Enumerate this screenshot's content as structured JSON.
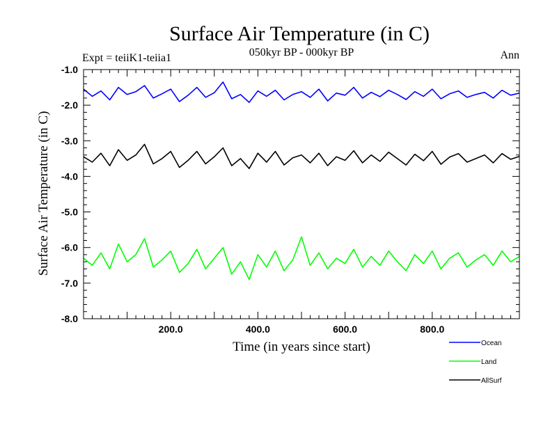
{
  "chart_data": {
    "type": "line",
    "title": "Surface Air Temperature (in C)",
    "subtitle": "050kyr BP - 000kyr BP",
    "left_label": "Expt = teiiK1-teiia1",
    "right_label": "Ann",
    "xlabel": "Time (in years since start)",
    "ylabel": "Surface Air Temperature (in C)",
    "xlim": [
      0,
      1000
    ],
    "ylim": [
      -8.0,
      -1.0
    ],
    "x_ticks": [
      {
        "value": 200,
        "label": "200.0"
      },
      {
        "value": 400,
        "label": "400.0"
      },
      {
        "value": 600,
        "label": "600.0"
      },
      {
        "value": 800,
        "label": "800.0"
      }
    ],
    "y_ticks": [
      {
        "value": -1,
        "label": "-1.0"
      },
      {
        "value": -2,
        "label": "-2.0"
      },
      {
        "value": -3,
        "label": "-3.0"
      },
      {
        "value": -4,
        "label": "-4.0"
      },
      {
        "value": -5,
        "label": "-5.0"
      },
      {
        "value": -6,
        "label": "-6.0"
      },
      {
        "value": -7,
        "label": "-7.0"
      },
      {
        "value": -8,
        "label": "-8.0"
      }
    ],
    "grid": false,
    "legend_position": "bottom-right",
    "series": [
      {
        "name": "Ocean",
        "color": "#0000ff",
        "x_start": 0,
        "x_step": 20,
        "values": [
          -1.55,
          -1.75,
          -1.6,
          -1.85,
          -1.5,
          -1.7,
          -1.62,
          -1.45,
          -1.8,
          -1.68,
          -1.55,
          -1.9,
          -1.72,
          -1.5,
          -1.78,
          -1.65,
          -1.35,
          -1.82,
          -1.7,
          -1.92,
          -1.6,
          -1.75,
          -1.58,
          -1.85,
          -1.7,
          -1.62,
          -1.78,
          -1.55,
          -1.88,
          -1.66,
          -1.72,
          -1.5,
          -1.8,
          -1.64,
          -1.76,
          -1.58,
          -1.7,
          -1.84,
          -1.62,
          -1.75,
          -1.55,
          -1.82,
          -1.68,
          -1.6,
          -1.78,
          -1.7,
          -1.64,
          -1.8,
          -1.58,
          -1.72,
          -1.66
        ]
      },
      {
        "name": "Land",
        "color": "#00ff00",
        "x_start": 0,
        "x_step": 20,
        "values": [
          -6.3,
          -6.5,
          -6.15,
          -6.6,
          -5.9,
          -6.4,
          -6.2,
          -5.75,
          -6.55,
          -6.35,
          -6.1,
          -6.7,
          -6.45,
          -6.05,
          -6.6,
          -6.3,
          -6.0,
          -6.75,
          -6.4,
          -6.9,
          -6.2,
          -6.55,
          -6.1,
          -6.65,
          -6.35,
          -5.7,
          -6.5,
          -6.15,
          -6.6,
          -6.3,
          -6.45,
          -6.05,
          -6.55,
          -6.25,
          -6.5,
          -6.1,
          -6.4,
          -6.65,
          -6.2,
          -6.45,
          -6.1,
          -6.6,
          -6.3,
          -6.15,
          -6.55,
          -6.35,
          -6.2,
          -6.5,
          -6.1,
          -6.4,
          -6.25
        ]
      },
      {
        "name": "AllSurf",
        "color": "#000000",
        "x_start": 0,
        "x_step": 20,
        "values": [
          -3.45,
          -3.6,
          -3.35,
          -3.7,
          -3.25,
          -3.55,
          -3.4,
          -3.1,
          -3.65,
          -3.5,
          -3.3,
          -3.75,
          -3.55,
          -3.3,
          -3.65,
          -3.45,
          -3.2,
          -3.7,
          -3.5,
          -3.78,
          -3.35,
          -3.6,
          -3.3,
          -3.68,
          -3.48,
          -3.4,
          -3.62,
          -3.35,
          -3.7,
          -3.45,
          -3.55,
          -3.28,
          -3.62,
          -3.4,
          -3.58,
          -3.32,
          -3.5,
          -3.68,
          -3.38,
          -3.56,
          -3.3,
          -3.66,
          -3.46,
          -3.36,
          -3.6,
          -3.5,
          -3.4,
          -3.62,
          -3.36,
          -3.52,
          -3.44
        ]
      }
    ]
  }
}
